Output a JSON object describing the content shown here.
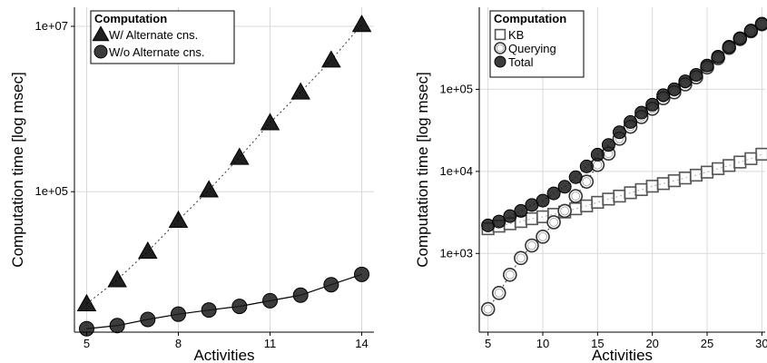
{
  "chart_data": [
    {
      "type": "line",
      "xlabel": "Activities",
      "ylabel": "Computation time [log msec]",
      "y_scale": "log",
      "xlim": [
        4.6,
        14.4
      ],
      "ylim": [
        2000,
        17000000
      ],
      "x_ticks": [
        5,
        8,
        11,
        14
      ],
      "y_ticks": [
        {
          "value": 100000,
          "label": "1e+05"
        },
        {
          "value": 10000000,
          "label": "1e+07"
        }
      ],
      "grid": true,
      "legend": {
        "title": "Computation",
        "position": "top-left"
      },
      "x": [
        5,
        6,
        7,
        8,
        9,
        10,
        11,
        12,
        13,
        14
      ],
      "series": [
        {
          "name": "W/ Alternate cns.",
          "marker": "triangle",
          "line": "dotted",
          "values": [
            4400,
            8600,
            19000,
            45000,
            105000,
            260000,
            680000,
            1600000,
            3900000,
            10500000
          ]
        },
        {
          "name": "W/o Alternate cns.",
          "marker": "circle",
          "line": "solid",
          "values": [
            2200,
            2400,
            2850,
            3300,
            3700,
            4100,
            4800,
            5600,
            7500,
            10000
          ]
        }
      ]
    },
    {
      "type": "line",
      "xlabel": "Activities",
      "ylabel": "Computation time [log msec]",
      "y_scale": "log",
      "xlim": [
        4.2,
        30.3
      ],
      "ylim": [
        110,
        1000000
      ],
      "x_ticks": [
        5,
        10,
        15,
        20,
        25,
        30
      ],
      "y_ticks": [
        {
          "value": 1000,
          "label": "1e+03"
        },
        {
          "value": 10000,
          "label": "1e+04"
        },
        {
          "value": 100000,
          "label": "1e+05"
        }
      ],
      "grid": true,
      "legend": {
        "title": "Computation",
        "position": "top-left"
      },
      "x": [
        5,
        6,
        7,
        8,
        9,
        10,
        11,
        12,
        13,
        14,
        15,
        16,
        17,
        18,
        19,
        20,
        21,
        22,
        23,
        24,
        25,
        26,
        27,
        28,
        29,
        30
      ],
      "series": [
        {
          "name": "KB",
          "marker": "square",
          "line": "dotted",
          "values": [
            2000,
            2150,
            2300,
            2450,
            2650,
            2800,
            3000,
            3200,
            3500,
            3800,
            4200,
            4600,
            5000,
            5500,
            6000,
            6600,
            7100,
            7700,
            8300,
            9000,
            9800,
            10800,
            11800,
            13000,
            14300,
            16200
          ]
        },
        {
          "name": "Querying",
          "marker": "hollow-circle",
          "line": "dotted",
          "values": [
            210,
            330,
            550,
            880,
            1250,
            1600,
            2400,
            3300,
            5000,
            7500,
            12000,
            16500,
            25000,
            35000,
            46000,
            58000,
            78000,
            92000,
            115000,
            140000,
            185000,
            240000,
            320000,
            410000,
            510000,
            620000
          ]
        },
        {
          "name": "Total",
          "marker": "circle",
          "line": "dotted",
          "values": [
            2200,
            2450,
            2850,
            3300,
            3900,
            4400,
            5400,
            6500,
            8500,
            11500,
            16000,
            21000,
            30000,
            40000,
            52000,
            65000,
            85000,
            100000,
            125000,
            150000,
            195000,
            250000,
            330000,
            420000,
            520000,
            630000
          ]
        }
      ]
    }
  ]
}
